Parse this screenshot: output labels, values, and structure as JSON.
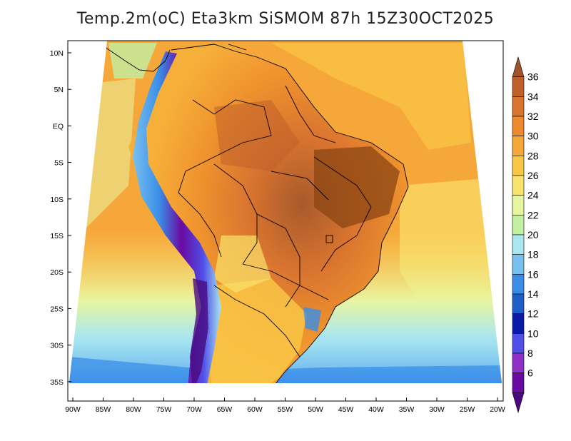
{
  "title": "Temp.2m(oC) Eta3km SiSMOM 87h 15Z30OCT2025",
  "lat_labels": [
    "10N",
    "5N",
    "EQ",
    "5S",
    "10S",
    "15S",
    "20S",
    "25S",
    "30S",
    "35S"
  ],
  "lon_labels": [
    "90W",
    "85W",
    "80W",
    "75W",
    "70W",
    "65W",
    "60W",
    "55W",
    "50W",
    "45W",
    "40W",
    "35W",
    "30W",
    "25W",
    "20W"
  ],
  "colorbar": {
    "labels": [
      "36",
      "34",
      "32",
      "30",
      "28",
      "26",
      "24",
      "22",
      "20",
      "18",
      "16",
      "14",
      "12",
      "10",
      "8",
      "6"
    ],
    "colors": [
      "#a0522d",
      "#c0602a",
      "#d9742f",
      "#ee8a2d",
      "#f6a73a",
      "#f9c645",
      "#fae36b",
      "#e8f5a0",
      "#c2f0a2",
      "#a8e6f0",
      "#78c0f0",
      "#3a8ee8",
      "#1e5ec8",
      "#0a1aa8",
      "#5050e8",
      "#9030c8",
      "#6a0aa0",
      "#4a0a80"
    ]
  }
}
